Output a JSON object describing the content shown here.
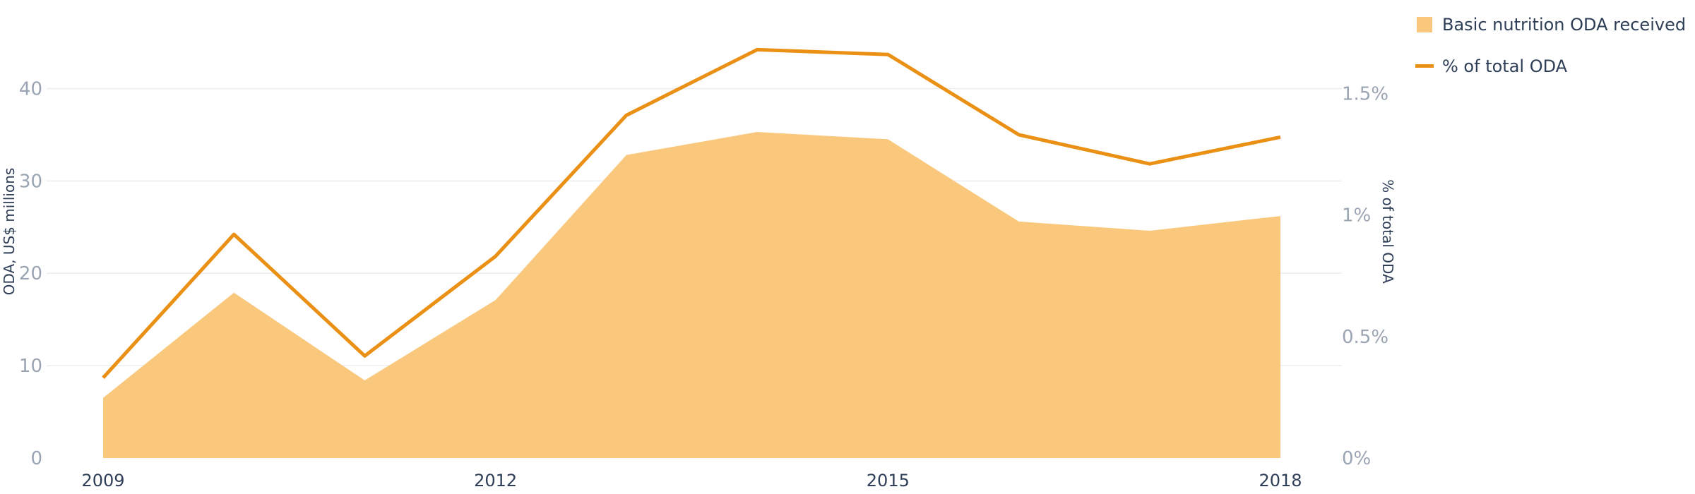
{
  "chart_data": {
    "type": "area",
    "x": [
      2009,
      2010,
      2011,
      2012,
      2013,
      2014,
      2015,
      2016,
      2017,
      2018
    ],
    "x_tick_labels": [
      "2009",
      "2012",
      "2015",
      "2018"
    ],
    "x_tick_values": [
      2009,
      2012,
      2015,
      2018
    ],
    "series": [
      {
        "name": "Basic nutrition ODA received",
        "type": "area",
        "axis": "left",
        "color": "#fac87c",
        "values": [
          6.5,
          17.9,
          8.4,
          17.1,
          32.8,
          35.3,
          34.5,
          25.6,
          24.6,
          26.2
        ]
      },
      {
        "name": "% of total ODA",
        "type": "line",
        "axis": "right",
        "color": "#ea9015",
        "values": [
          0.33,
          0.92,
          0.42,
          0.83,
          1.41,
          1.68,
          1.66,
          1.33,
          1.21,
          1.32
        ]
      }
    ],
    "y_left": {
      "label": "ODA, US$ millions",
      "ylim": [
        0,
        45
      ],
      "ticks": [
        0,
        10,
        20,
        30,
        40
      ],
      "tick_labels": [
        "0",
        "10",
        "20",
        "30",
        "40"
      ]
    },
    "y_right": {
      "label": "% of total ODA",
      "ylim": [
        0,
        1.71
      ],
      "ticks": [
        0,
        0.5,
        1,
        1.5
      ],
      "tick_labels": [
        "0%",
        "0.5%",
        "1%",
        "1.5%"
      ]
    },
    "grid": true,
    "legend_position": "top-right"
  }
}
